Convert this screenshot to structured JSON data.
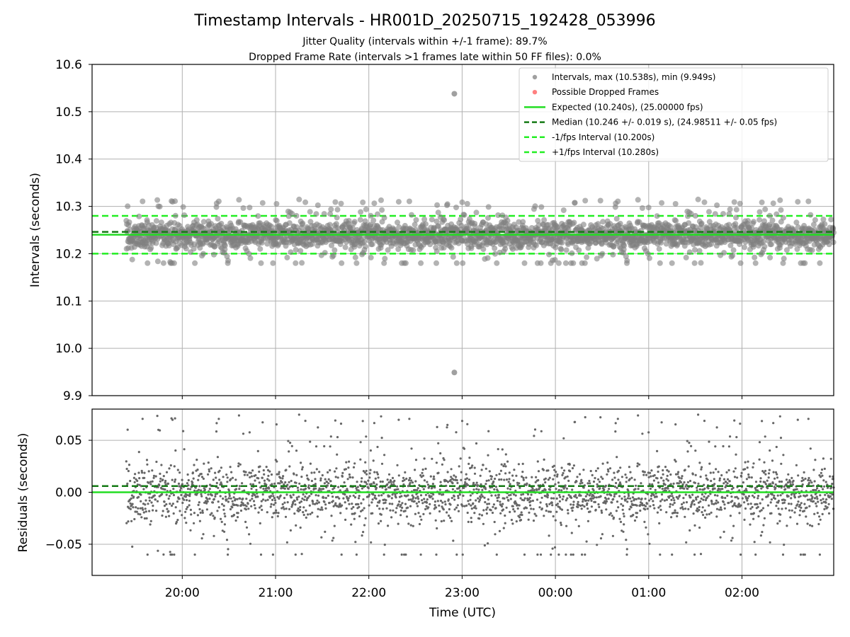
{
  "title": "Timestamp Intervals - HR001D_20250715_192428_053996",
  "subtitle_1": "Jitter Quality (intervals within +/-1 frame): 89.7%",
  "subtitle_2": "Dropped Frame Rate (intervals >1 frames late within 50 FF files): 0.0%",
  "colors": {
    "points": "#808080",
    "dropped": "#ff5555",
    "expected": "#22dd22",
    "median": "#157a15",
    "bounds": "#22ee22",
    "grid": "#b0b0b0"
  },
  "chart_data": [
    {
      "type": "scatter",
      "panel": "intervals",
      "ylabel": "Intervals (seconds)",
      "ylim": [
        9.9,
        10.6
      ],
      "yticks": [
        "10.6",
        "10.5",
        "10.4",
        "10.3",
        "10.2",
        "10.1",
        "10.0",
        "9.9"
      ],
      "xlim": [
        "19:02",
        "02:59"
      ],
      "grid": true,
      "legend_position": "top-right",
      "legend": [
        "Intervals, max (10.538s), min (9.949s)",
        "Possible Dropped Frames",
        "Expected (10.240s), (25.00000 fps)",
        "Median (10.246 +/- 0.019 s), (24.98511 +/- 0.05 fps)",
        "-1/fps Interval (10.200s)",
        "+1/fps Interval (10.280s)"
      ],
      "lines": {
        "expected": 10.24,
        "median": 10.246,
        "minus_1fps": 10.2,
        "plus_1fps": 10.28
      },
      "series_summary": {
        "time_start": "19:24",
        "time_end": "02:59",
        "max": 10.538,
        "min": 9.949,
        "median": 10.246,
        "std": 0.019,
        "outliers": [
          {
            "time": "22:55",
            "value": 10.538
          },
          {
            "time": "22:55",
            "value": 9.949
          }
        ]
      }
    },
    {
      "type": "scatter",
      "panel": "residuals",
      "ylabel": "Residuals (seconds)",
      "xlabel": "Time (UTC)",
      "ylim": [
        -0.08,
        0.08
      ],
      "yticks": [
        "0.05",
        "0.00",
        "−0.05"
      ],
      "xticks": [
        "20:00",
        "21:00",
        "22:00",
        "23:00",
        "00:00",
        "01:00",
        "02:00"
      ],
      "grid": true,
      "lines": {
        "zero": 0.0,
        "median_offset": 0.006
      },
      "series_summary": {
        "time_start": "19:24",
        "time_end": "02:59",
        "max": 0.075,
        "min": -0.057
      }
    }
  ]
}
